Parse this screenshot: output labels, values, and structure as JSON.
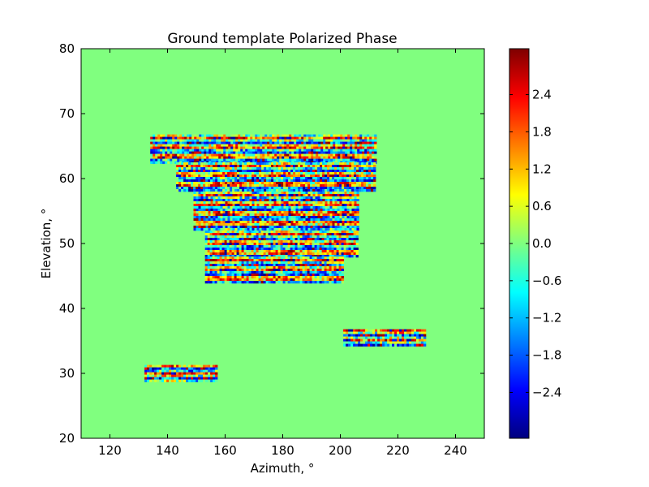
{
  "chart_data": {
    "type": "heatmap",
    "title": "Ground template Polarized Phase",
    "xlabel": "Azimuth, °",
    "ylabel": "Elevation, °",
    "xlim": [
      110,
      250
    ],
    "ylim": [
      20,
      80
    ],
    "xticks": [
      120,
      140,
      160,
      180,
      200,
      220,
      240
    ],
    "yticks": [
      20,
      30,
      40,
      50,
      60,
      70,
      80
    ],
    "background_value": 0.0,
    "colormap": "jet",
    "colorbar": {
      "vmin": -3.14,
      "vmax": 3.14,
      "ticks": [
        -2.4,
        -1.8,
        -1.2,
        -0.6,
        0.0,
        0.6,
        1.2,
        1.8,
        2.4
      ],
      "tick_labels": [
        "−2.4",
        "−1.8",
        "−1.2",
        "−0.6",
        "0.0",
        "0.6",
        "1.2",
        "1.8",
        "2.4"
      ]
    },
    "regions": [
      {
        "name": "main",
        "rows": [
          {
            "el": [
              62.5,
              66.8
            ],
            "az": [
              134,
              212
            ]
          },
          {
            "el": [
              58.0,
              62.5
            ],
            "az": [
              143,
              212
            ]
          },
          {
            "el": [
              52.0,
              58.0
            ],
            "az": [
              149,
              206
            ]
          },
          {
            "el": [
              48.0,
              52.0
            ],
            "az": [
              153,
              206
            ]
          },
          {
            "el": [
              44.2,
              48.0
            ],
            "az": [
              153,
              201
            ]
          }
        ]
      },
      {
        "name": "right",
        "rows": [
          {
            "el": [
              34.3,
              36.8
            ],
            "az": [
              201,
              229
            ]
          }
        ]
      },
      {
        "name": "left",
        "rows": [
          {
            "el": [
              28.8,
              31.3
            ],
            "az": [
              132,
              157
            ]
          }
        ]
      }
    ]
  }
}
